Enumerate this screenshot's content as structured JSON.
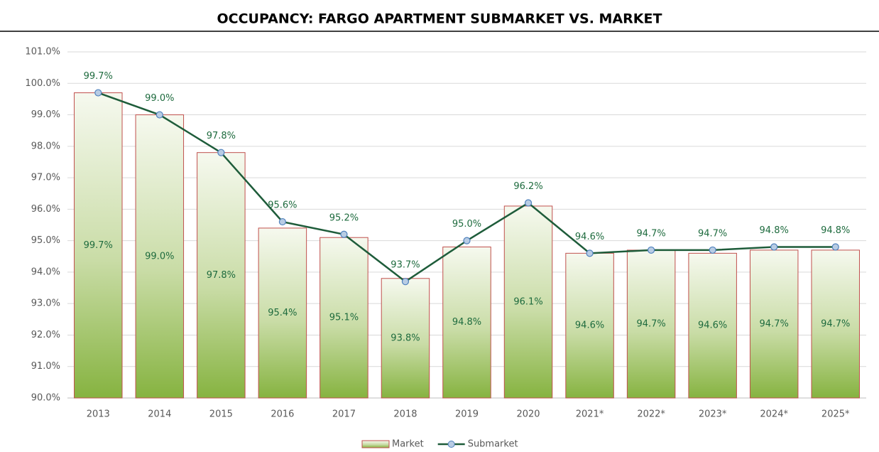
{
  "chart_data": {
    "type": "bar",
    "title": "OCCUPANCY: FARGO APARTMENT SUBMARKET VS. MARKET",
    "categories": [
      "2013",
      "2014",
      "2015",
      "2016",
      "2017",
      "2018",
      "2019",
      "2020",
      "2021*",
      "2022*",
      "2023*",
      "2024*",
      "2025*"
    ],
    "series": [
      {
        "name": "Market",
        "type": "bar",
        "color": "#8db84a",
        "values": [
          99.7,
          99.0,
          97.8,
          95.4,
          95.1,
          93.8,
          94.8,
          96.1,
          94.6,
          94.7,
          94.6,
          94.7,
          94.7
        ],
        "value_labels": [
          "99.7%",
          "99.0%",
          "97.8%",
          "95.4%",
          "95.1%",
          "93.8%",
          "94.8%",
          "96.1%",
          "94.6%",
          "94.7%",
          "94.6%",
          "94.7%",
          "94.7%"
        ]
      },
      {
        "name": "Submarket",
        "type": "line",
        "color": "#1e5c3a",
        "values": [
          99.7,
          99.0,
          97.8,
          95.6,
          95.2,
          93.7,
          95.0,
          96.2,
          94.6,
          94.7,
          94.7,
          94.8,
          94.8
        ],
        "value_labels": [
          "99.7%",
          "99.0%",
          "97.8%",
          "95.6%",
          "95.2%",
          "93.7%",
          "95.0%",
          "96.2%",
          "94.6%",
          "94.7%",
          "94.7%",
          "94.8%",
          "94.8%"
        ]
      }
    ],
    "ylim": [
      90,
      101
    ],
    "yticks": [
      {
        "value": 90,
        "label": "90.0%"
      },
      {
        "value": 91,
        "label": "91.0%"
      },
      {
        "value": 92,
        "label": "92.0%"
      },
      {
        "value": 93,
        "label": "93.0%"
      },
      {
        "value": 94,
        "label": "94.0%"
      },
      {
        "value": 95,
        "label": "95.0%"
      },
      {
        "value": 96,
        "label": "96.0%"
      },
      {
        "value": 97,
        "label": "97.0%"
      },
      {
        "value": 98,
        "label": "98.0%"
      },
      {
        "value": 99,
        "label": "99.0%"
      },
      {
        "value": 100,
        "label": "100.0%"
      },
      {
        "value": 101,
        "label": "101.0%"
      }
    ],
    "grid": true
  }
}
